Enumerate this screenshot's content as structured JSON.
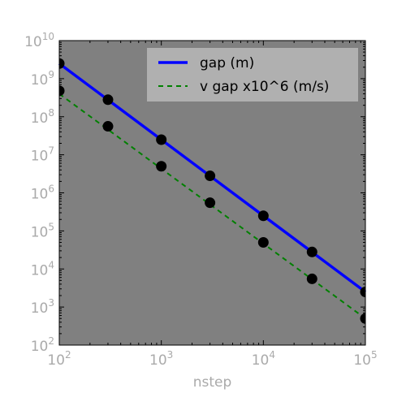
{
  "chart_data": {
    "type": "line",
    "xscale": "log",
    "yscale": "log",
    "xlabel": "nstep",
    "ylabel": "",
    "title": "",
    "xlim": [
      100,
      100000
    ],
    "ylim": [
      100,
      10000000000
    ],
    "x_ticks": [
      {
        "base": "10",
        "exp": "2",
        "value": 100
      },
      {
        "base": "10",
        "exp": "3",
        "value": 1000
      },
      {
        "base": "10",
        "exp": "4",
        "value": 10000
      },
      {
        "base": "10",
        "exp": "5",
        "value": 100000
      }
    ],
    "y_ticks": [
      {
        "base": "10",
        "exp": "2",
        "value": 100
      },
      {
        "base": "10",
        "exp": "3",
        "value": 1000
      },
      {
        "base": "10",
        "exp": "4",
        "value": 10000
      },
      {
        "base": "10",
        "exp": "5",
        "value": 100000
      },
      {
        "base": "10",
        "exp": "6",
        "value": 1000000
      },
      {
        "base": "10",
        "exp": "7",
        "value": 10000000
      },
      {
        "base": "10",
        "exp": "8",
        "value": 100000000
      },
      {
        "base": "10",
        "exp": "9",
        "value": 1000000000
      },
      {
        "base": "10",
        "exp": "10",
        "value": 10000000000
      }
    ],
    "legend_position": "top-right",
    "series": [
      {
        "name": "gap (m)",
        "style": "solid",
        "color": "#0000ff",
        "line_x": [
          100,
          100000
        ],
        "line_y": [
          2500000000,
          2500
        ],
        "points_x": [
          100,
          300,
          1000,
          3000,
          10000,
          30000,
          100000
        ],
        "points_y": [
          2500000000,
          280000000,
          25000000,
          2800000,
          250000,
          28000,
          2500
        ]
      },
      {
        "name": "v gap x10^6 (m/s)",
        "style": "dashed",
        "color": "#008000",
        "line_x": [
          100,
          100000
        ],
        "line_y": [
          400000000,
          500
        ],
        "points_x": [
          100,
          300,
          1000,
          3000,
          10000,
          30000,
          100000
        ],
        "points_y": [
          480000000,
          56000000,
          5000000,
          550000,
          50000,
          5500,
          500
        ]
      }
    ],
    "marker_color": "#000000",
    "plot_background": "#808080",
    "legend_background": "#b0b0b0"
  }
}
